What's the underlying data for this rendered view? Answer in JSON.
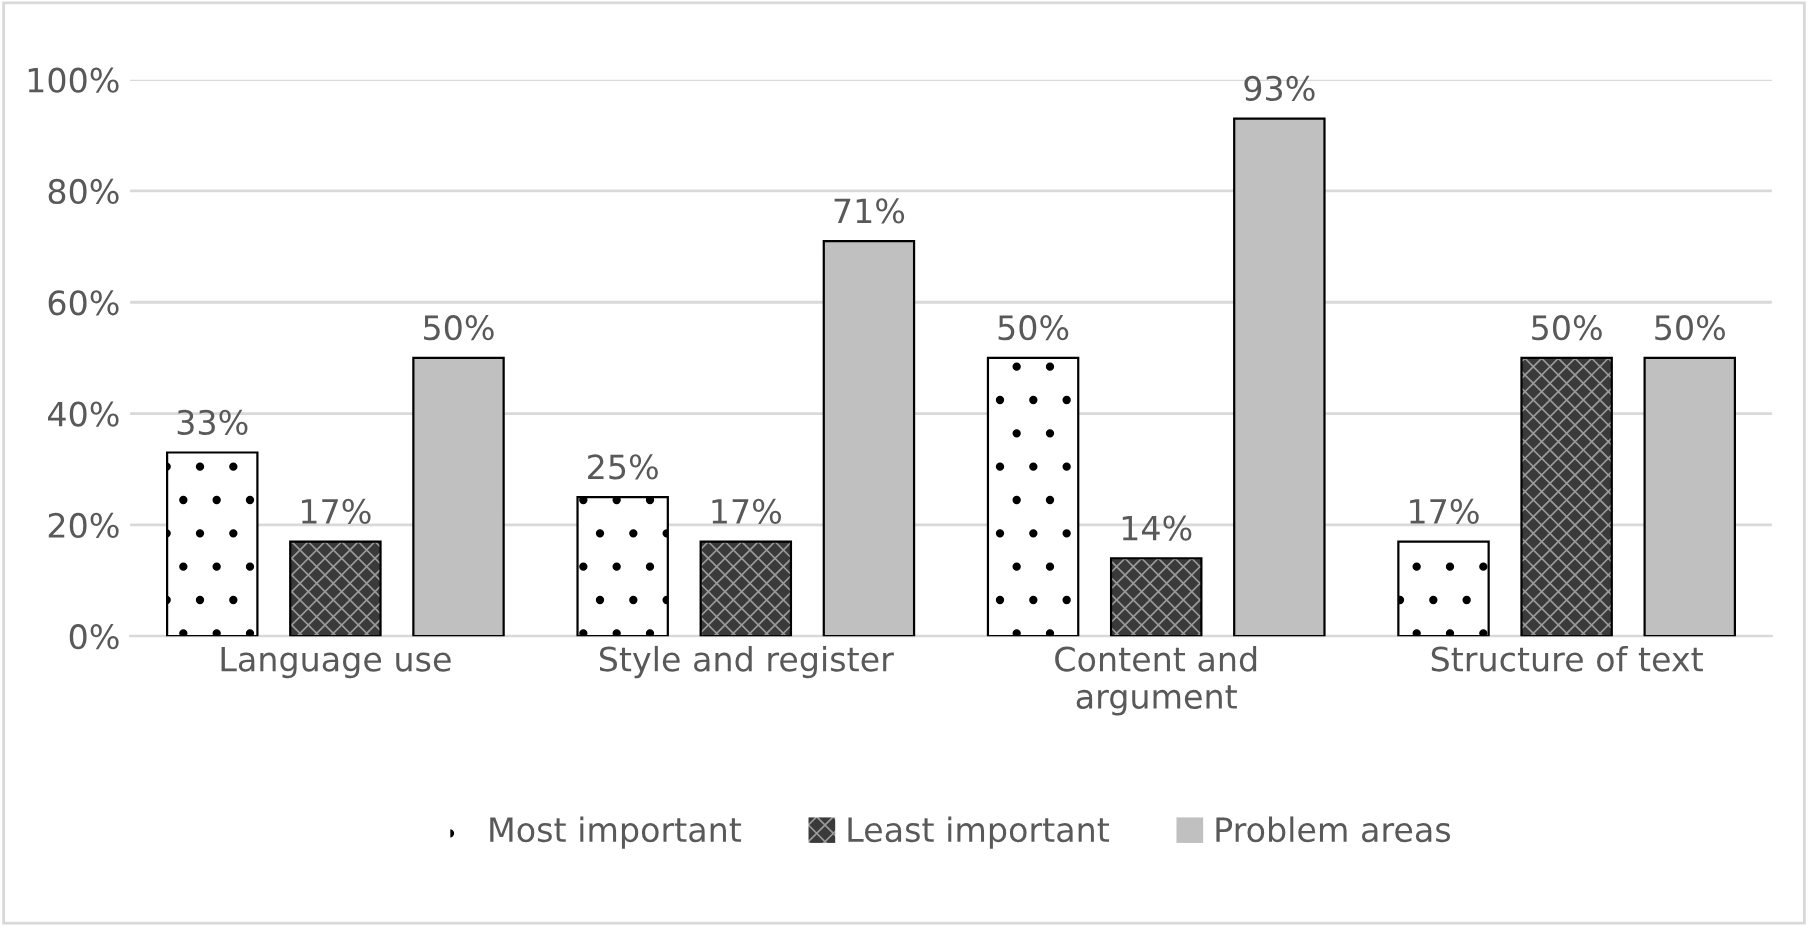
{
  "chart_data": {
    "type": "bar",
    "categories": [
      "Language use",
      "Style and register",
      "Content and argument",
      "Structure of text"
    ],
    "series": [
      {
        "name": "Most important",
        "color": "#ffffff",
        "values": [
          33,
          25,
          50,
          17
        ],
        "value_labels": [
          "33%",
          "25%",
          "50%",
          "17%"
        ]
      },
      {
        "name": "Least important",
        "color": "#3a3a3a",
        "values": [
          17,
          17,
          14,
          50
        ],
        "value_labels": [
          "17%",
          "17%",
          "14%",
          "50%"
        ]
      },
      {
        "name": "Problem areas",
        "color": "#c0c0c0",
        "values": [
          50,
          71,
          93,
          50
        ],
        "value_labels": [
          "50%",
          "71%",
          "93%",
          "50%"
        ]
      }
    ],
    "ylim": [
      0,
      100
    ],
    "yticks": [
      {
        "value": 0,
        "label": "0%"
      },
      {
        "value": 20,
        "label": "20%"
      },
      {
        "value": 40,
        "label": "40%"
      },
      {
        "value": 60,
        "label": "60%"
      },
      {
        "value": 80,
        "label": "80%"
      },
      {
        "value": 100,
        "label": "100%"
      }
    ],
    "grid": "y",
    "legend": "bottom"
  }
}
